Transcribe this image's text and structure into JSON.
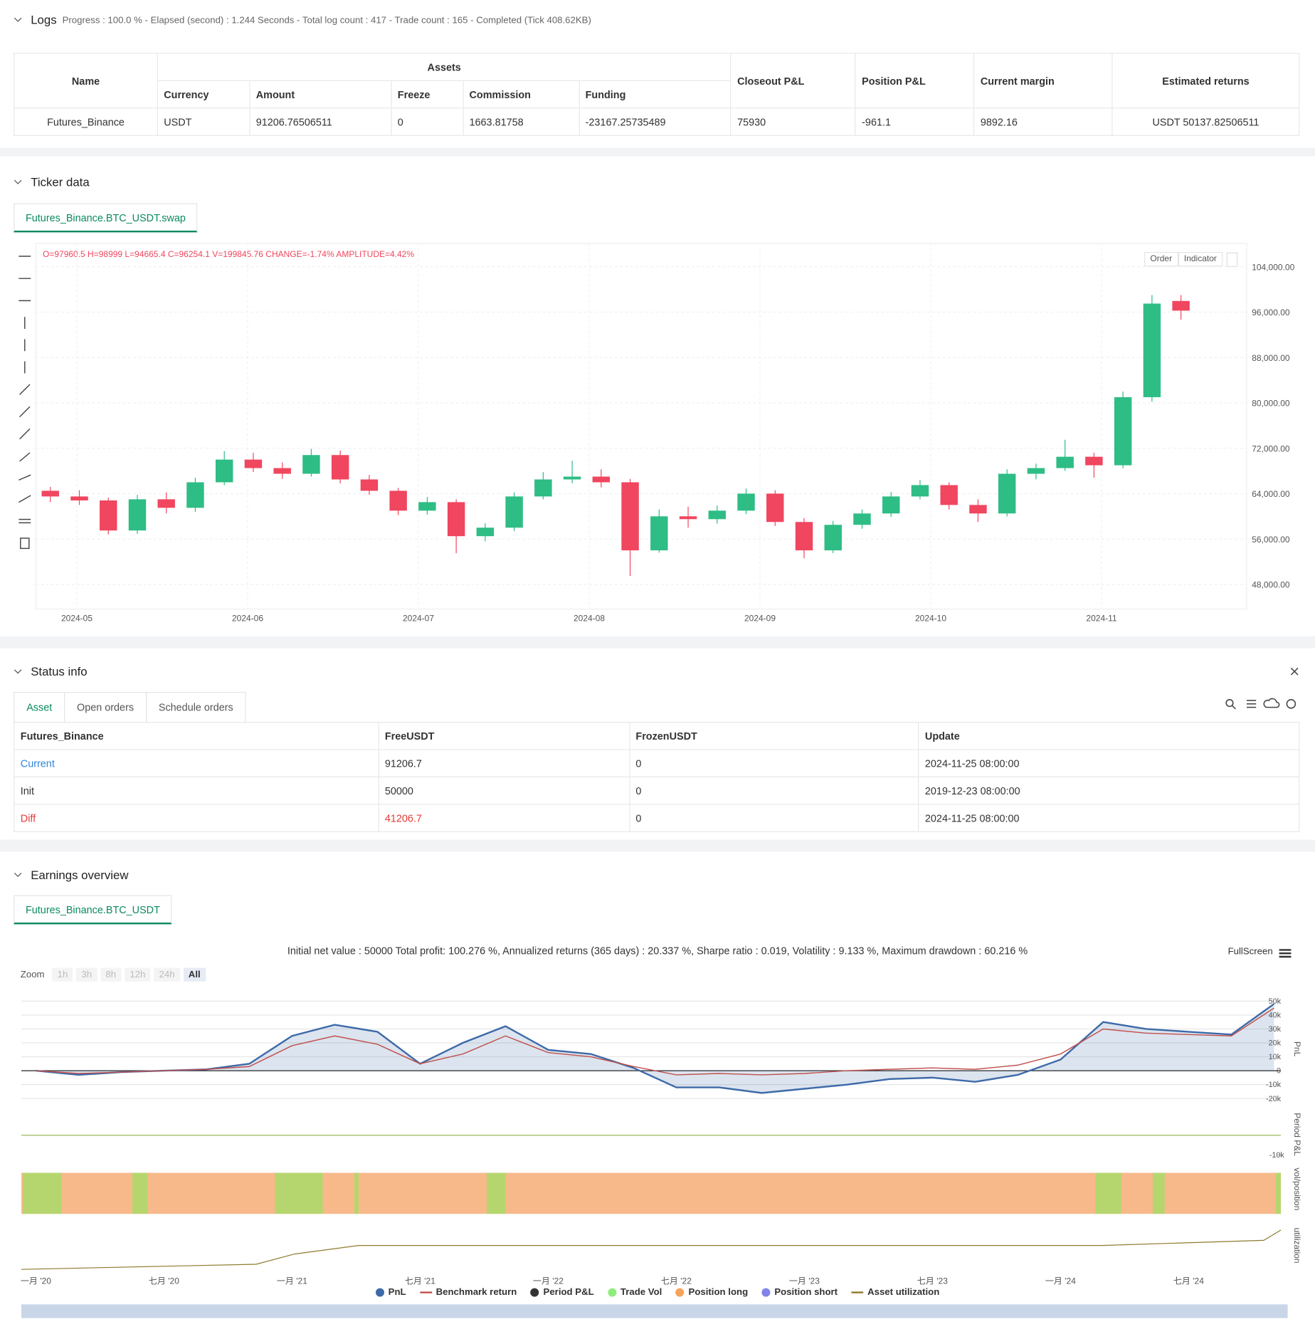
{
  "logs": {
    "title": "Logs",
    "summary": "Progress : 100.0 % - Elapsed (second) : 1.244  Seconds - Total log count : 417 - Trade count : 165 - Completed (Tick 408.62KB)",
    "table": {
      "head_left": [
        "Name"
      ],
      "group": "Assets",
      "group_columns": [
        "Currency",
        "Amount",
        "Freeze",
        "Commission",
        "Funding"
      ],
      "head_right": [
        "Closeout P&L",
        "Position P&L",
        "Current margin",
        "Estimated returns"
      ],
      "rows": [
        [
          "Futures_Binance",
          "USDT",
          "91206.76506511",
          "0",
          "1663.81758",
          "-23167.25735489",
          "75930",
          "-961.1",
          "9892.16",
          "USDT 50137.82506511"
        ]
      ]
    }
  },
  "ticker": {
    "title": "Ticker data",
    "tab": "Futures_Binance.BTC_USDT.swap",
    "info": "O=97960.5 H=98999 L=94665.4 C=96254.1 V=199845.76 CHANGE=-1.74% AMPLITUDE=4.42%",
    "buttons": [
      "Order",
      "Indicator"
    ],
    "chart": {
      "type": "candlestick",
      "up_color": "#2ebd85",
      "down_color": "#f0465f",
      "open": [
        64500,
        63500,
        62800,
        57500,
        63000,
        61500,
        66000,
        70000,
        68500,
        67500,
        70800,
        66500,
        64500,
        61000,
        62500,
        56500,
        58000,
        63500,
        66500,
        67000,
        66000,
        54000,
        60000,
        59500,
        61000,
        64000,
        59000,
        54000,
        58500,
        60500,
        63500,
        65500,
        62000,
        60500,
        67500,
        68500,
        70500,
        69000,
        81000,
        97960.5
      ],
      "high": [
        65200,
        64600,
        63300,
        63800,
        64200,
        66800,
        71500,
        71200,
        69500,
        71900,
        71600,
        67300,
        65000,
        63400,
        63000,
        58800,
        64200,
        67800,
        69800,
        68300,
        66600,
        61200,
        61700,
        61900,
        64900,
        64600,
        59700,
        59200,
        61200,
        64300,
        66400,
        66000,
        63000,
        68300,
        69300,
        73500,
        71200,
        82000,
        99000,
        98999
      ],
      "low": [
        62500,
        62000,
        56800,
        56900,
        60500,
        60800,
        65500,
        67800,
        66600,
        67000,
        65800,
        63800,
        60200,
        60300,
        53500,
        55600,
        57400,
        63000,
        65800,
        65100,
        49500,
        53600,
        58000,
        58700,
        60400,
        58300,
        52600,
        53500,
        57800,
        59900,
        63000,
        61200,
        59000,
        60000,
        66500,
        68000,
        66800,
        68500,
        80200,
        94665.4
      ],
      "close": [
        63500,
        62800,
        57500,
        63000,
        61500,
        66000,
        70000,
        68500,
        67500,
        70800,
        66500,
        64500,
        61000,
        62500,
        56500,
        58000,
        63500,
        66500,
        67000,
        66000,
        54000,
        60000,
        59500,
        61000,
        64000,
        59000,
        54000,
        58500,
        60500,
        63500,
        65500,
        62000,
        60500,
        67500,
        68500,
        70500,
        69000,
        81000,
        97500,
        96254.1
      ],
      "ylim": [
        43800,
        108100
      ],
      "yticks": [
        {
          "value": 48000,
          "label": "48,000.00"
        },
        {
          "value": 56000,
          "label": "56,000.00"
        },
        {
          "value": 64000,
          "label": "64,000.00"
        },
        {
          "value": 72000,
          "label": "72,000.00"
        },
        {
          "value": 80000,
          "label": "80,000.00"
        },
        {
          "value": 88000,
          "label": "88,000.00"
        },
        {
          "value": 96000,
          "label": "96,000.00"
        },
        {
          "value": 104000,
          "label": "104,000.00"
        }
      ],
      "xticks": [
        "2024-05",
        "2024-06",
        "2024-07",
        "2024-08",
        "2024-09",
        "2024-10",
        "2024-11"
      ],
      "grid": true
    }
  },
  "status": {
    "title": "Status info",
    "tabs": [
      "Asset",
      "Open orders",
      "Schedule orders"
    ],
    "table": {
      "headers": [
        "Futures_Binance",
        "FreeUSDT",
        "FrozenUSDT",
        "Update"
      ],
      "rows": [
        [
          "Current",
          "91206.7",
          "0",
          "2024-11-25 08:00:00"
        ],
        [
          "Init",
          "50000",
          "0",
          "2019-12-23 08:00:00"
        ],
        [
          "Diff",
          "41206.7",
          "0",
          "2024-11-25 08:00:00"
        ]
      ]
    }
  },
  "earnings": {
    "title": "Earnings overview",
    "tab": "Futures_Binance.BTC_USDT",
    "summary": "Initial net value : 50000 Total profit: 100.276 %, Annualized returns (365 days) : 20.337 %, Sharpe ratio : 0.019, Volatility : 9.133 %, Maximum drawdown : 60.216 %",
    "fullscreen": "FullScreen",
    "zoom": {
      "label": "Zoom",
      "buttons": [
        "1h",
        "3h",
        "8h",
        "12h",
        "24h",
        "All"
      ]
    },
    "chart": {
      "type": "line",
      "xticks": [
        "一月 '20",
        "七月 '20",
        "一月 '21",
        "七月 '21",
        "一月 '22",
        "七月 '22",
        "一月 '23",
        "七月 '23",
        "一月 '24",
        "七月 '24"
      ],
      "series": [
        {
          "name": "PnL",
          "color": "#3d6aa8",
          "values": [
            0,
            -3000,
            -1000,
            0,
            1000,
            5000,
            25000,
            33000,
            28000,
            5000,
            20000,
            32000,
            15000,
            12000,
            2000,
            -12000,
            -12000,
            -16000,
            -13000,
            -10000,
            -6000,
            -5000,
            -8000,
            -3000,
            8000,
            35000,
            30000,
            28000,
            26000,
            48000
          ]
        },
        {
          "name": "Benchmark return",
          "color": "#c0504d",
          "values": [
            0,
            -2000,
            -1000,
            0,
            1000,
            3000,
            18000,
            25000,
            19000,
            5000,
            12000,
            25000,
            13000,
            10000,
            3000,
            -3000,
            -2000,
            -3000,
            -2000,
            0,
            1000,
            2000,
            1000,
            4000,
            12000,
            30000,
            27000,
            26000,
            25000,
            45000
          ]
        }
      ],
      "ylim": [
        -23700,
        54300
      ],
      "yticks": [
        {
          "value": -20000,
          "label": "-20k"
        },
        {
          "value": -10000,
          "label": "-10k"
        },
        0,
        {
          "value": 10000,
          "label": "10k"
        },
        {
          "value": 20000,
          "label": "20k"
        },
        {
          "value": 30000,
          "label": "30k"
        },
        {
          "value": 40000,
          "label": "40k"
        },
        {
          "value": 50000,
          "label": "50k"
        }
      ],
      "period_pnl": {
        "ylim": [
          -13500,
          13500
        ],
        "yticks": [
          {
            "value": -10000,
            "label": "-10k"
          }
        ]
      },
      "axis_titles": [
        "PnL",
        "Period P&L",
        "vol/position",
        "utilization"
      ],
      "legend": [
        {
          "name": "Period P&L",
          "color": "#333333"
        },
        {
          "name": "Trade Vol",
          "color": "#90ed7d"
        },
        {
          "name": "Position long",
          "color": "#f7a35c"
        },
        {
          "name": "Position short",
          "color": "#8085e9"
        },
        {
          "name": "Asset utilization",
          "color": "#8d7a2e"
        }
      ]
    }
  }
}
